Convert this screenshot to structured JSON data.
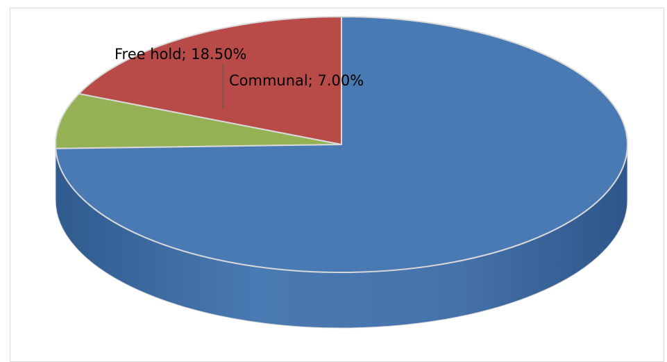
{
  "chart_data": {
    "type": "pie",
    "title": "",
    "slices": [
      {
        "label": "Free hold",
        "value": 18.5,
        "display": "Free hold; 18.50%",
        "color": "#b84b47"
      },
      {
        "label": "Communal",
        "value": 7.0,
        "display": "Communal; 7.00%",
        "color": "#94b254"
      },
      {
        "label": "",
        "value": 74.5,
        "display": "",
        "color": "#4a7ab3"
      }
    ],
    "style": "3d",
    "legend": "none"
  }
}
